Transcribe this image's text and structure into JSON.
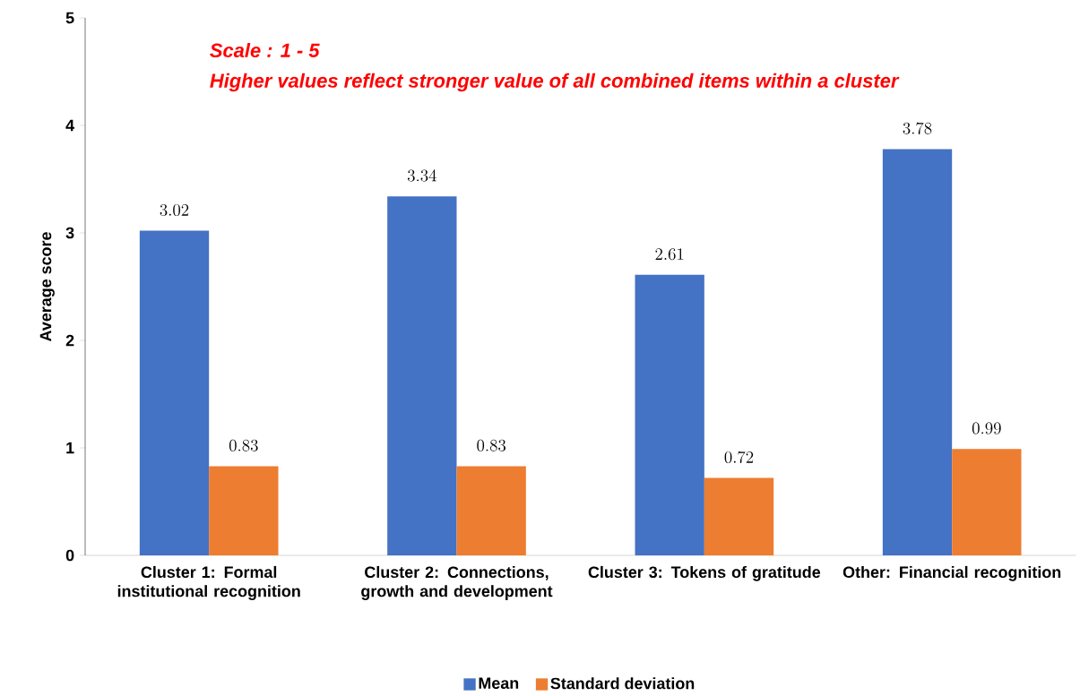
{
  "chart_data": {
    "type": "bar",
    "categories": [
      "Cluster 1: Formal institutional recognition",
      "Cluster 2: Connections, growth and development",
      "Cluster 3: Tokens of gratitude",
      "Other: Financial recognition"
    ],
    "series": [
      {
        "name": "Mean",
        "color": "#4472c4",
        "values": [
          3.02,
          3.34,
          2.61,
          3.78
        ]
      },
      {
        "name": "Standard deviation",
        "color": "#ed7d31",
        "values": [
          0.83,
          0.83,
          0.72,
          0.99
        ]
      }
    ],
    "ylabel": "Average score",
    "ylim": [
      0,
      5
    ],
    "yticks": [
      0,
      1,
      2,
      3,
      4,
      5
    ],
    "annotations": [
      "Scale : 1 - 5",
      "Higher values reflect stronger value of all combined items within a cluster"
    ],
    "data_labels": true,
    "legend": "bottom",
    "grid": false
  }
}
